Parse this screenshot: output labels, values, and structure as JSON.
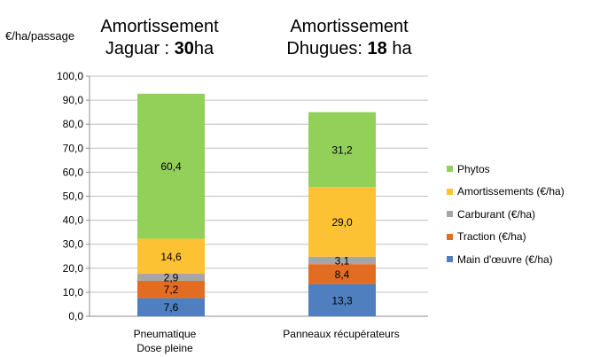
{
  "chart_data": {
    "type": "bar",
    "stacked": true,
    "ylabel": "€/ha/passage",
    "ylim": [
      0,
      100
    ],
    "yticks": [
      "0,0",
      "10,0",
      "20,0",
      "30,0",
      "40,0",
      "50,0",
      "60,0",
      "70,0",
      "80,0",
      "90,0",
      "100,0"
    ],
    "categories": [
      {
        "lines": [
          "Pneumatique",
          "Dose pleine"
        ]
      },
      {
        "lines": [
          "Panneaux récupérateurs"
        ]
      }
    ],
    "group_titles": [
      {
        "line1": "Amortissement",
        "line2_prefix": "Jaguar : ",
        "line2_bold": "30",
        "line2_suffix": "ha"
      },
      {
        "line1": "Amortissement",
        "line2_prefix": "Dhugues: ",
        "line2_bold": "18",
        "line2_suffix": " ha"
      }
    ],
    "series": [
      {
        "name": "Main d'œuvre (€/ha)",
        "color": "#4f7fbf",
        "values": [
          7.6,
          13.3
        ],
        "labels": [
          "7,6",
          "13,3"
        ]
      },
      {
        "name": "Traction (€/ha)",
        "color": "#e36c23",
        "values": [
          7.2,
          8.4
        ],
        "labels": [
          "7,2",
          "8,4"
        ]
      },
      {
        "name": "Carburant (€/ha)",
        "color": "#a6a6a6",
        "values": [
          2.9,
          3.1
        ],
        "labels": [
          "2,9",
          "3,1"
        ]
      },
      {
        "name": "Amortissements (€/ha)",
        "color": "#fcc234",
        "values": [
          14.6,
          29.0
        ],
        "labels": [
          "14,6",
          "29,0"
        ]
      },
      {
        "name": "Phytos",
        "color": "#92d05a",
        "values": [
          60.4,
          31.2
        ],
        "labels": [
          "60,4",
          "31,2"
        ]
      }
    ],
    "grid": true,
    "legend": "right"
  }
}
